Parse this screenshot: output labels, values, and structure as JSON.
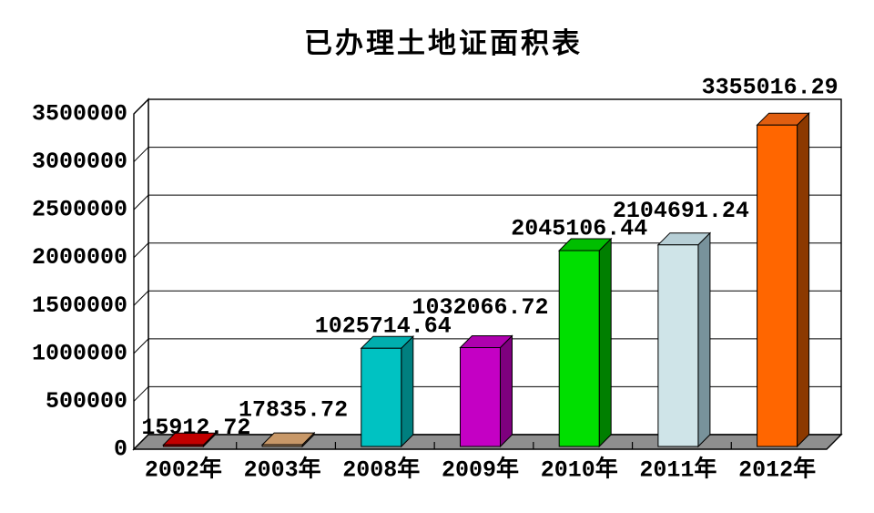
{
  "chart_data": {
    "type": "bar",
    "projection": "3d",
    "title": "已办理土地证面积表",
    "categories": [
      "2002年",
      "2003年",
      "2008年",
      "2009年",
      "2010年",
      "2011年",
      "2012年"
    ],
    "values": [
      15912.72,
      17835.72,
      1025714.64,
      1032066.72,
      2045106.44,
      2104691.24,
      3355016.29
    ],
    "value_labels": [
      "15912.72",
      "17835.72",
      "1025714.64",
      "1032066.72",
      "2045106.44",
      "2104691.24",
      "3355016.29"
    ],
    "yticks": [
      "0",
      "500000",
      "1000000",
      "1500000",
      "2000000",
      "2500000",
      "3000000",
      "3500000"
    ],
    "ylim": [
      0,
      3500000
    ],
    "ytick_step": 500000,
    "grid": true,
    "legend": "none",
    "xlabel": "",
    "ylabel": "",
    "bar_colors": [
      {
        "name": "dark-red",
        "front": "#D40000",
        "top": "#C20000",
        "side": "#800000"
      },
      {
        "name": "tan",
        "front": "#D6A878",
        "top": "#C89868",
        "side": "#8A6848"
      },
      {
        "name": "teal",
        "front": "#00C2C2",
        "top": "#00AEAE",
        "side": "#007F7F"
      },
      {
        "name": "magenta",
        "front": "#C400C4",
        "top": "#AE00AE",
        "side": "#7E007E"
      },
      {
        "name": "green",
        "front": "#00DF00",
        "top": "#00BE00",
        "side": "#007F00"
      },
      {
        "name": "pale-blue",
        "front": "#CFE4E8",
        "top": "#B7CFD6",
        "side": "#78929B"
      },
      {
        "name": "orange",
        "front": "#FF6600",
        "top": "#E05E10",
        "side": "#8C3900"
      }
    ],
    "floor_color": "#8F8F8F",
    "wall_color": "#FFFFFF",
    "axis_color": "#000000",
    "background": "#FFFFFF"
  }
}
